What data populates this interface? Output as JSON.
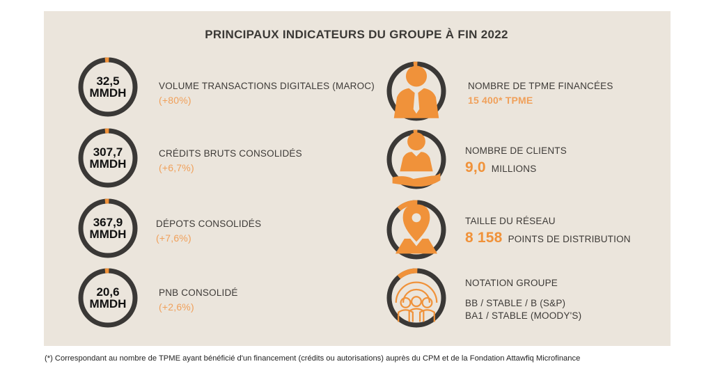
{
  "title": "PRINCIPAUX INDICATEURS DU GROUPE À FIN 2022",
  "left": [
    {
      "value": "32,5",
      "unit": "MMDH",
      "label": "VOLUME TRANSACTIONS DIGITALES (MAROC)",
      "change": "(+80%)"
    },
    {
      "value": "307,7",
      "unit": "MMDH",
      "label": "CRÉDITS BRUTS CONSOLIDÉS",
      "change": "(+6,7%)"
    },
    {
      "value": "367,9",
      "unit": "MMDH",
      "label": "DÉPOTS CONSOLIDÉS",
      "change": "(+7,6%)"
    },
    {
      "value": "20,6",
      "unit": "MMDH",
      "label": "PNB CONSOLIDÉ",
      "change": "(+2,6%)"
    }
  ],
  "right": [
    {
      "icon": "businessman-icon",
      "label": "NOMBRE DE TPME FINANCÉES",
      "value": "15 400* TPME"
    },
    {
      "icon": "client-hand-icon",
      "label": "NOMBRE DE CLIENTS",
      "big": "9,0",
      "unit": "MILLIONS"
    },
    {
      "icon": "map-pin-icon",
      "label": "TAILLE DU RÉSEAU",
      "big": "8 158",
      "unit": "POINTS DE DISTRIBUTION"
    },
    {
      "icon": "team-gear-icon",
      "label": "NOTATION GROUPE",
      "line1": "BB / STABLE / B (S&P)",
      "line2": "BA1 / STABLE (MOODY'S)"
    }
  ],
  "footnote": "(*) Correspondant au nombre de TPME ayant bénéficié d'un financement (crédits ou autorisations) auprès du CPM et de la Fondation Attawfiq Microfinance",
  "colors": {
    "accent": "#f0923a",
    "ring": "#3a3836",
    "panel": "#ebe5dc"
  }
}
